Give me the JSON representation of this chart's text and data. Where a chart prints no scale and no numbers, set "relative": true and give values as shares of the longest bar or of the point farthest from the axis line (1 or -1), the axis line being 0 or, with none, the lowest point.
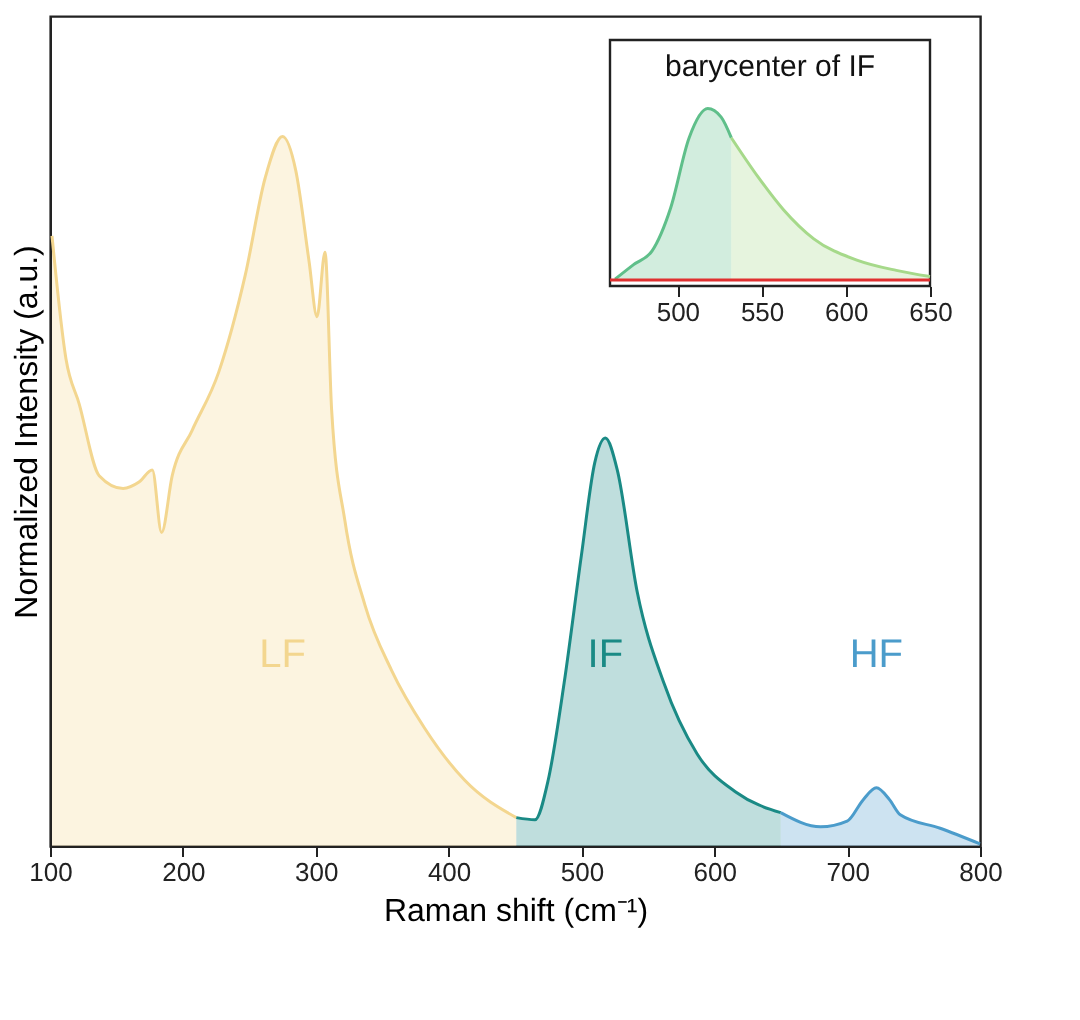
{
  "chart_data": [
    {
      "type": "area",
      "relative": true,
      "xlabel": "Raman shift (cm⁻¹)",
      "ylabel": "Normalized Intensity (a.u.)",
      "xlim": [
        100,
        800
      ],
      "xticks": [
        100,
        200,
        300,
        400,
        500,
        600,
        700,
        800
      ],
      "tick_labels": "x",
      "series": [
        {
          "name": "LF",
          "color": "#f3d68f",
          "x": [
            101.5,
            112,
            122,
            137,
            155,
            167,
            177,
            184,
            192,
            207,
            227,
            247,
            262,
            275,
            285,
            295,
            301,
            307,
            312,
            322,
            337,
            357,
            382,
            412,
            451
          ],
          "values": [
            0.86,
            0.687,
            0.623,
            0.522,
            0.504,
            0.513,
            0.53,
            0.442,
            0.522,
            0.586,
            0.668,
            0.805,
            0.942,
            1.0,
            0.952,
            0.824,
            0.746,
            0.837,
            0.614,
            0.458,
            0.34,
            0.248,
            0.166,
            0.093,
            0.04
          ]
        },
        {
          "name": "IF",
          "color": "#1a8a85",
          "x": [
            451,
            465,
            475,
            487,
            500,
            510,
            518,
            527,
            542,
            562,
            587,
            617,
            650
          ],
          "values": [
            0.04,
            0.037,
            0.093,
            0.23,
            0.41,
            0.54,
            0.575,
            0.53,
            0.358,
            0.23,
            0.13,
            0.075,
            0.047
          ]
        },
        {
          "name": "HF",
          "color": "#4b9ccb",
          "x": [
            650,
            680,
            700,
            712,
            722,
            732,
            740,
            770,
            800
          ],
          "values": [
            0.047,
            0.027,
            0.035,
            0.065,
            0.082,
            0.065,
            0.044,
            0.025,
            0.003
          ]
        }
      ]
    },
    {
      "type": "area",
      "relative": true,
      "title": "barycenter of IF",
      "xlim": [
        460,
        650
      ],
      "xticks": [
        500,
        550,
        600,
        650
      ],
      "tick_labels": "x",
      "ref_lines": [
        {
          "axis": "y",
          "value": 0,
          "color": "#e03030"
        }
      ],
      "series": [
        {
          "color": "#5fbf8a",
          "x": [
            463,
            474,
            485,
            496,
            507,
            518,
            526,
            532
          ],
          "values": [
            0.005,
            0.09,
            0.17,
            0.42,
            0.83,
            1.0,
            0.95,
            0.83
          ]
        },
        {
          "color": "#a6d98a",
          "x": [
            532,
            548,
            563,
            581,
            607,
            630,
            650
          ],
          "values": [
            0.83,
            0.6,
            0.41,
            0.24,
            0.115,
            0.056,
            0.02
          ]
        }
      ]
    }
  ]
}
